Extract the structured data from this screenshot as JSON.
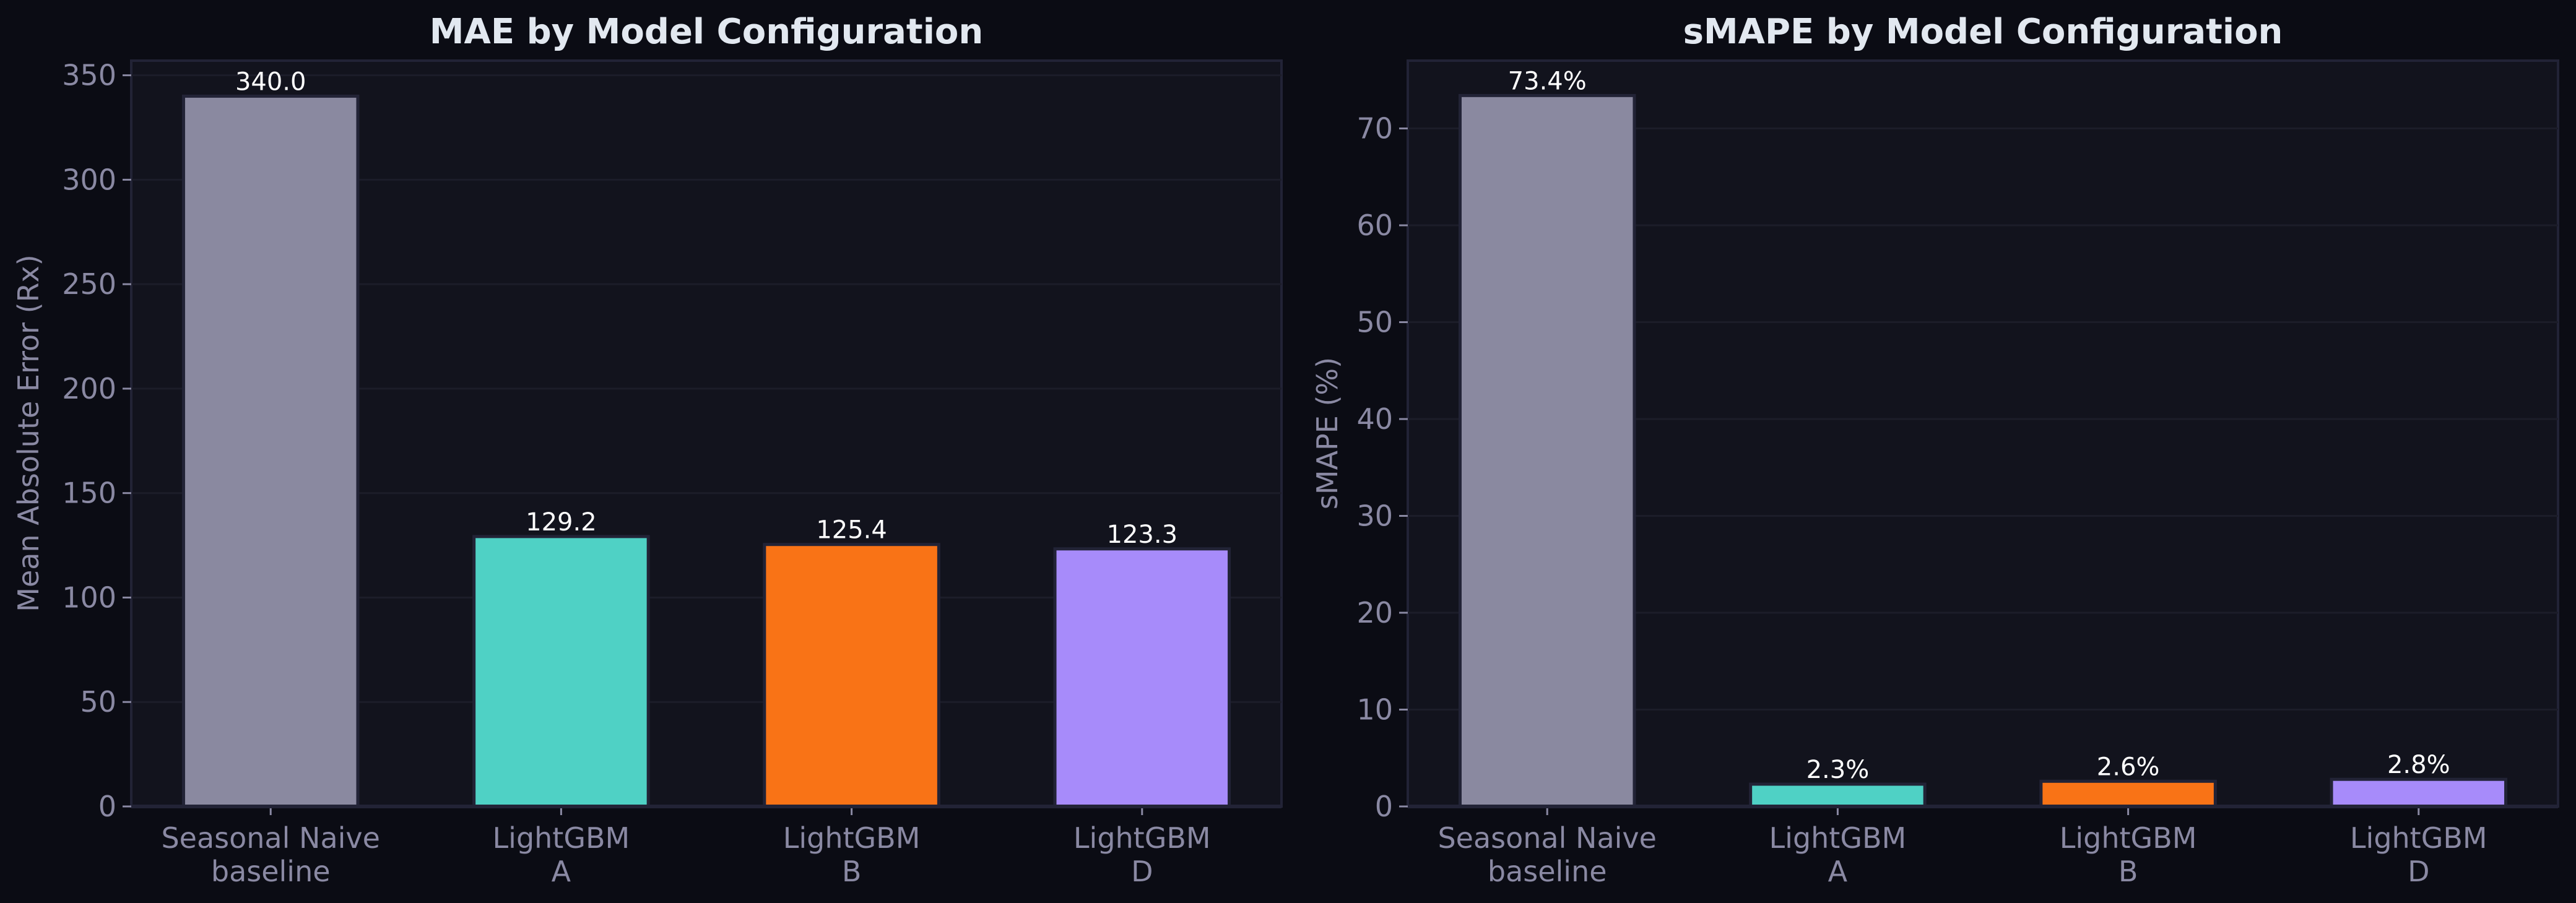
{
  "colors": {
    "background": "#0b0c14",
    "plot_background": "#12131d",
    "grid": "#1c1d29",
    "spine": "#222336",
    "tick_text": "#8a89a3",
    "title_text": "#e2e8f0",
    "label_text": "#ffffff"
  },
  "chart_data": [
    {
      "type": "bar",
      "title": "MAE by Model Configuration",
      "xlabel": "",
      "ylabel": "Mean Absolute Error (Rx)",
      "categories": [
        [
          "Seasonal Naive",
          "baseline"
        ],
        [
          "LightGBM",
          "A"
        ],
        [
          "LightGBM",
          "B"
        ],
        [
          "LightGBM",
          "D"
        ]
      ],
      "values": [
        340.0,
        129.2,
        125.4,
        123.3
      ],
      "value_labels": [
        "340.0",
        "129.2",
        "125.4",
        "123.3"
      ],
      "bar_colors": [
        "#8a89a0",
        "#4fd1c5",
        "#f97316",
        "#a78bfa"
      ],
      "ylim": [
        0,
        357
      ],
      "yticks": [
        0,
        50,
        100,
        150,
        200,
        250,
        300,
        350
      ],
      "grid": true
    },
    {
      "type": "bar",
      "title": "sMAPE by Model Configuration",
      "xlabel": "",
      "ylabel": "sMAPE (%)",
      "categories": [
        [
          "Seasonal Naive",
          "baseline"
        ],
        [
          "LightGBM",
          "A"
        ],
        [
          "LightGBM",
          "B"
        ],
        [
          "LightGBM",
          "D"
        ]
      ],
      "values": [
        73.4,
        2.3,
        2.6,
        2.8
      ],
      "value_labels": [
        "73.4%",
        "2.3%",
        "2.6%",
        "2.8%"
      ],
      "bar_colors": [
        "#8a89a0",
        "#4fd1c5",
        "#f97316",
        "#a78bfa"
      ],
      "ylim": [
        0,
        77
      ],
      "yticks": [
        0,
        10,
        20,
        30,
        40,
        50,
        60,
        70
      ],
      "grid": true
    }
  ]
}
